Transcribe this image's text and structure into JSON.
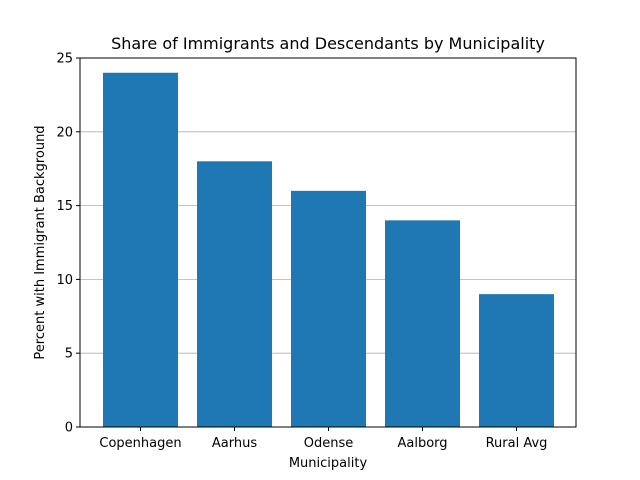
{
  "chart_data": {
    "type": "bar",
    "title": "Share of Immigrants and Descendants by Municipality",
    "xlabel": "Municipality",
    "ylabel": "Percent with Immigrant Background",
    "categories": [
      "Copenhagen",
      "Aarhus",
      "Odense",
      "Aalborg",
      "Rural Avg"
    ],
    "values": [
      24,
      18,
      16,
      14,
      9
    ],
    "ylim": [
      0,
      25
    ],
    "yticks": [
      0,
      5,
      10,
      15,
      20,
      25
    ],
    "grid": "y",
    "bar_color": "#1f77b4",
    "grid_color": "#b0b0b0"
  }
}
